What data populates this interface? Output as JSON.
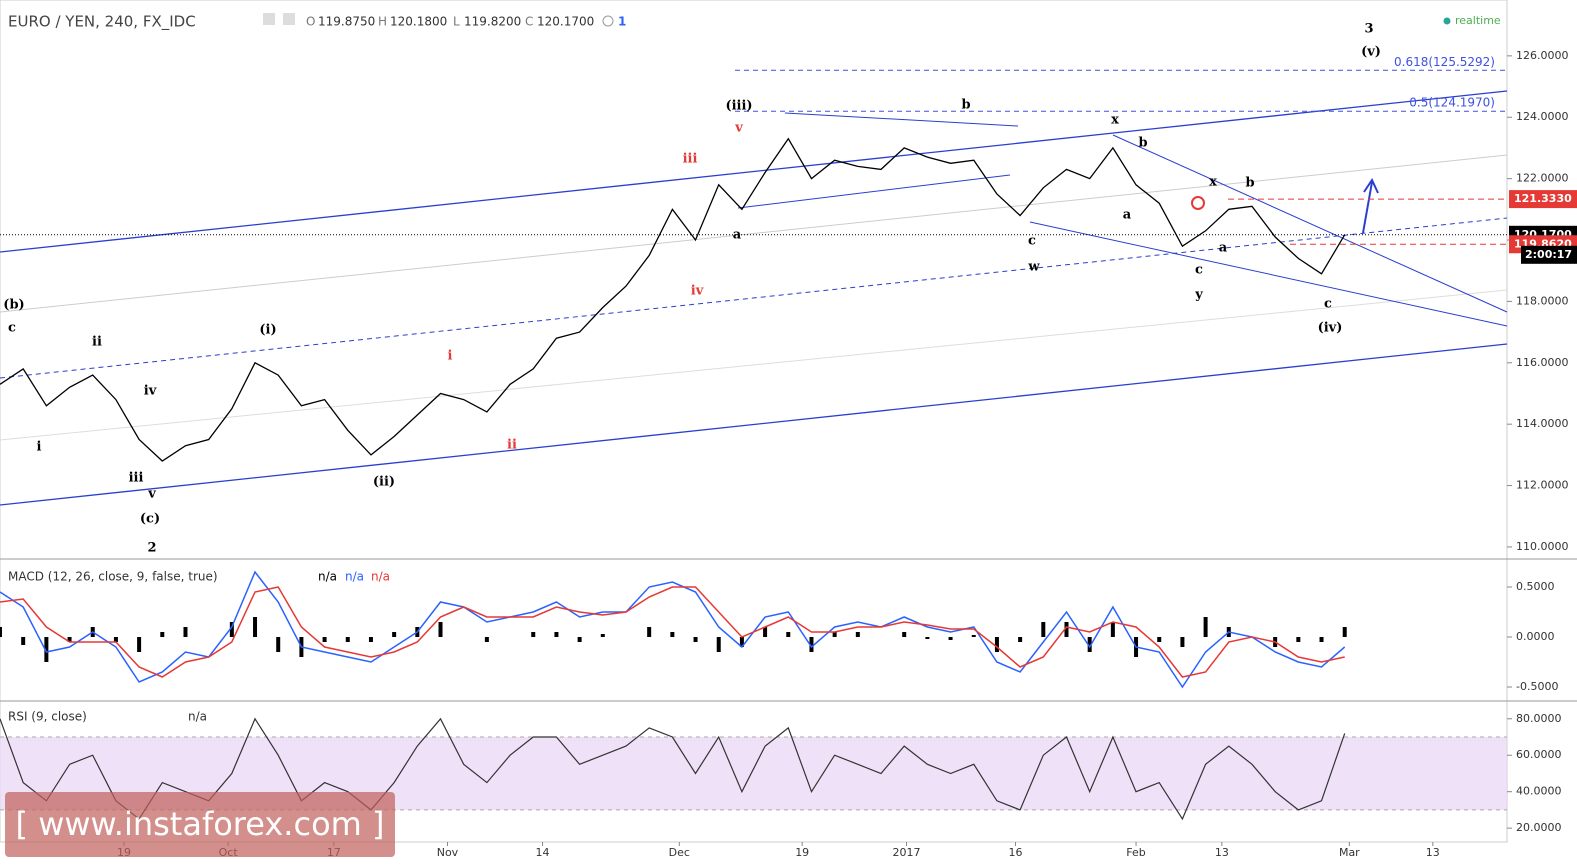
{
  "chart_data": [
    {
      "type": "line",
      "title": "EURO / YEN, 240, FX_IDC",
      "ohlc": [
        "O",
        "119.8750",
        "H",
        "120.1800",
        "L",
        "119.8200",
        "C",
        "120.1700"
      ],
      "alerts": "1",
      "status": "realtime",
      "x": [
        0,
        1,
        2,
        3,
        4,
        5,
        6,
        7,
        8,
        9,
        10,
        11,
        12,
        13,
        14,
        15,
        16,
        17,
        18,
        19,
        20,
        21,
        22,
        23,
        24,
        25,
        26,
        27,
        28,
        29,
        30,
        31,
        32,
        33,
        34,
        35,
        36,
        37,
        38,
        39,
        40,
        41,
        42,
        43,
        44,
        45,
        46,
        47,
        48,
        49,
        50,
        51,
        52,
        53,
        54,
        55,
        56,
        57,
        58
      ],
      "values": [
        115.3,
        115.8,
        114.6,
        115.2,
        115.6,
        114.8,
        113.5,
        112.8,
        113.3,
        113.5,
        114.5,
        116.0,
        115.6,
        114.6,
        114.8,
        113.8,
        113.0,
        113.6,
        114.3,
        115.0,
        114.8,
        114.4,
        115.3,
        115.8,
        116.8,
        117.0,
        117.8,
        118.5,
        119.5,
        121.0,
        120.0,
        121.8,
        121.0,
        122.2,
        123.3,
        122.0,
        122.6,
        122.4,
        122.3,
        123.0,
        122.7,
        122.5,
        122.6,
        121.5,
        120.8,
        121.7,
        122.3,
        122.0,
        123.0,
        121.8,
        121.2,
        119.8,
        120.3,
        121.0,
        121.1,
        120.1,
        119.4,
        118.9,
        120.17
      ],
      "color": "#000000",
      "xlim": [
        0,
        65
      ],
      "ylim": [
        109.64,
        127.82
      ],
      "xticks": [
        {
          "value": 5.35,
          "label": "19"
        },
        {
          "value": 9.84,
          "label": "Oct"
        },
        {
          "value": 14.4,
          "label": "17"
        },
        {
          "value": 19.3,
          "label": "Nov"
        },
        {
          "value": 23.4,
          "label": "14"
        },
        {
          "value": 29.3,
          "label": "Dec"
        },
        {
          "value": 34.6,
          "label": "19"
        },
        {
          "value": 39.1,
          "label": "2017"
        },
        {
          "value": 43.8,
          "label": "16"
        },
        {
          "value": 49.0,
          "label": "Feb"
        },
        {
          "value": 52.7,
          "label": "13"
        },
        {
          "value": 58.2,
          "label": "Mar"
        },
        {
          "value": 61.8,
          "label": "13"
        }
      ],
      "yticks": [
        {
          "value": 110,
          "label": "110.0000"
        },
        {
          "value": 112,
          "label": "112.0000"
        },
        {
          "value": 114,
          "label": "114.0000"
        },
        {
          "value": 116,
          "label": "116.0000"
        },
        {
          "value": 118,
          "label": "118.0000"
        },
        {
          "value": 120,
          "label": "120.0000"
        },
        {
          "value": 122,
          "label": "122.0000"
        },
        {
          "value": 124,
          "label": "124.0000"
        },
        {
          "value": 126,
          "label": "126.0000"
        }
      ],
      "price_lines": [
        {
          "value": 121.333,
          "label": "121.3330",
          "color": "#e53935"
        },
        {
          "value": 120.17,
          "label": "120.1700",
          "color": "#000000"
        },
        {
          "value": 119.862,
          "label": "119.8620",
          "color": "#e53935"
        }
      ],
      "countdown": "2:00:17",
      "fib_levels": [
        {
          "value": 125.5292,
          "label": "0.618(125.5292)"
        },
        {
          "value": 124.197,
          "label": "0.5(124.1970)"
        }
      ],
      "fib_color": "#3f51e0",
      "annotations": [
        {
          "text": "(b)",
          "color": "#000"
        },
        {
          "text": "c",
          "color": "#000"
        },
        {
          "text": "i",
          "color": "#000"
        },
        {
          "text": "ii",
          "color": "#000"
        },
        {
          "text": "iv",
          "color": "#000"
        },
        {
          "text": "iii",
          "color": "#000"
        },
        {
          "text": "v",
          "color": "#000"
        },
        {
          "text": "(c)",
          "color": "#000"
        },
        {
          "text": "2",
          "color": "#000"
        },
        {
          "text": "(i)",
          "color": "#000"
        },
        {
          "text": "(ii)",
          "color": "#000"
        },
        {
          "text": "i",
          "color": "#e53935"
        },
        {
          "text": "ii",
          "color": "#e53935"
        },
        {
          "text": "iii",
          "color": "#e53935"
        },
        {
          "text": "v",
          "color": "#e53935"
        },
        {
          "text": "iv",
          "color": "#e53935"
        },
        {
          "text": "(iii)",
          "color": "#000"
        },
        {
          "text": "a",
          "color": "#000"
        },
        {
          "text": "b",
          "color": "#000"
        },
        {
          "text": "x",
          "color": "#000"
        },
        {
          "text": "b",
          "color": "#000"
        },
        {
          "text": "a",
          "color": "#000"
        },
        {
          "text": "c",
          "color": "#000"
        },
        {
          "text": "w",
          "color": "#000"
        },
        {
          "text": "c",
          "color": "#000"
        },
        {
          "text": "y",
          "color": "#000"
        },
        {
          "text": "x",
          "color": "#000"
        },
        {
          "text": "b",
          "color": "#000"
        },
        {
          "text": "a",
          "color": "#000"
        },
        {
          "text": "c",
          "color": "#000"
        },
        {
          "text": "(iv)",
          "color": "#000"
        },
        {
          "text": "3",
          "color": "#000"
        },
        {
          "text": "(v)",
          "color": "#000"
        }
      ],
      "watermark": "[ www.instaforex.com ]"
    },
    {
      "type": "macd",
      "title": "MACD (12, 26, close, 9, false, true)",
      "status": [
        {
          "text": "n/a",
          "color": "#000"
        },
        {
          "text": "n/a",
          "color": "#2962ff"
        },
        {
          "text": "n/a",
          "color": "#e53935"
        }
      ],
      "ylim": [
        -0.63,
        0.77
      ],
      "yticks": [
        {
          "value": -0.5,
          "label": "-0.5000"
        },
        {
          "value": 0,
          "label": "0.0000"
        },
        {
          "value": 0.5,
          "label": "0.5000"
        }
      ],
      "histogram": {
        "color": "#000000",
        "values": [
          0.1,
          -0.08,
          -0.25,
          -0.05,
          0.1,
          -0.05,
          -0.15,
          0.05,
          0.1,
          0,
          0.15,
          0.2,
          -0.15,
          -0.2,
          -0.05,
          -0.05,
          -0.05,
          0.05,
          0.1,
          0.15,
          0,
          -0.05,
          0,
          0.05,
          0.05,
          -0.05,
          0.03,
          0,
          0.1,
          0.05,
          -0.05,
          -0.15,
          -0.1,
          0.1,
          0.05,
          -0.15,
          0.05,
          0.05,
          0,
          0.05,
          -0.02,
          -0.03,
          0.02,
          -0.15,
          -0.05,
          0.15,
          0.15,
          -0.15,
          0.15,
          -0.2,
          -0.05,
          -0.1,
          0.2,
          0.1,
          0,
          -0.1,
          -0.05,
          -0.05,
          0.1
        ]
      },
      "series": [
        {
          "color": "#2962ff",
          "values": [
            0.45,
            0.3,
            -0.15,
            -0.1,
            0.05,
            -0.1,
            -0.45,
            -0.35,
            -0.15,
            -0.2,
            0.1,
            0.65,
            0.35,
            -0.1,
            -0.15,
            -0.2,
            -0.25,
            -0.1,
            0.05,
            0.35,
            0.3,
            0.15,
            0.2,
            0.25,
            0.35,
            0.2,
            0.25,
            0.25,
            0.5,
            0.55,
            0.45,
            0.1,
            -0.1,
            0.2,
            0.25,
            -0.1,
            0.1,
            0.15,
            0.1,
            0.2,
            0.1,
            0.05,
            0.1,
            -0.25,
            -0.35,
            -0.05,
            0.25,
            -0.1,
            0.3,
            -0.1,
            -0.15,
            -0.5,
            -0.15,
            0.05,
            0,
            -0.15,
            -0.25,
            -0.3,
            -0.1
          ]
        },
        {
          "color": "#e53935",
          "values": [
            0.35,
            0.38,
            0.1,
            -0.05,
            -0.05,
            -0.05,
            -0.3,
            -0.4,
            -0.25,
            -0.2,
            -0.05,
            0.45,
            0.5,
            0.1,
            -0.1,
            -0.15,
            -0.2,
            -0.15,
            -0.05,
            0.2,
            0.3,
            0.2,
            0.2,
            0.2,
            0.3,
            0.25,
            0.22,
            0.25,
            0.4,
            0.5,
            0.5,
            0.25,
            0,
            0.1,
            0.2,
            0.05,
            0.05,
            0.1,
            0.1,
            0.15,
            0.12,
            0.08,
            0.08,
            -0.1,
            -0.3,
            -0.2,
            0.1,
            0.05,
            0.15,
            0.1,
            -0.1,
            -0.4,
            -0.35,
            -0.05,
            0,
            -0.05,
            -0.2,
            -0.25,
            -0.2
          ]
        }
      ]
    },
    {
      "type": "rsi",
      "title": "RSI (9, close)",
      "status": "n/a",
      "ylim": [
        13.5,
        89.2
      ],
      "band": [
        30,
        70
      ],
      "band_color": "#e8d5f5",
      "yticks": [
        {
          "value": 20,
          "label": "20.0000"
        },
        {
          "value": 40,
          "label": "40.0000"
        },
        {
          "value": 60,
          "label": "60.0000"
        },
        {
          "value": 80,
          "label": "80.0000"
        }
      ],
      "color": "#333333",
      "values": [
        80,
        45,
        35,
        55,
        60,
        35,
        25,
        45,
        40,
        35,
        50,
        80,
        60,
        35,
        45,
        40,
        30,
        45,
        65,
        80,
        55,
        45,
        60,
        70,
        70,
        55,
        60,
        65,
        75,
        70,
        50,
        70,
        40,
        65,
        75,
        40,
        60,
        55,
        50,
        65,
        55,
        50,
        55,
        35,
        30,
        60,
        70,
        40,
        70,
        40,
        45,
        25,
        55,
        65,
        55,
        40,
        30,
        35,
        72
      ]
    }
  ]
}
